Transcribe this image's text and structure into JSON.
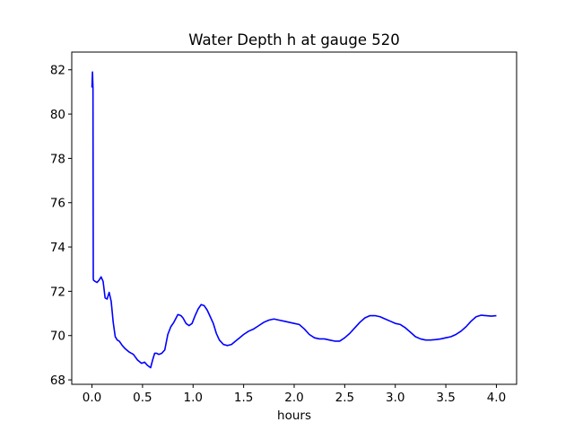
{
  "chart_data": {
    "type": "line",
    "title": "Water Depth h at gauge 520",
    "xlabel": "hours",
    "ylabel": "",
    "xlim": [
      -0.2,
      4.2
    ],
    "ylim": [
      67.8,
      82.8
    ],
    "x_ticks": [
      0.0,
      0.5,
      1.0,
      1.5,
      2.0,
      2.5,
      3.0,
      3.5,
      4.0
    ],
    "x_tick_labels": [
      "0.0",
      "0.5",
      "1.0",
      "1.5",
      "2.0",
      "2.5",
      "3.0",
      "3.5",
      "4.0"
    ],
    "y_ticks": [
      68,
      70,
      72,
      74,
      76,
      78,
      80,
      82
    ],
    "y_tick_labels": [
      "68",
      "70",
      "72",
      "74",
      "76",
      "78",
      "80",
      "82"
    ],
    "grid": false,
    "legend": null,
    "series": [
      {
        "color": "#0000ff",
        "x": [
          0.0,
          0.005,
          0.01,
          0.013,
          0.016,
          0.03,
          0.05,
          0.07,
          0.09,
          0.11,
          0.13,
          0.15,
          0.17,
          0.19,
          0.21,
          0.23,
          0.25,
          0.27,
          0.3,
          0.33,
          0.37,
          0.41,
          0.45,
          0.49,
          0.52,
          0.55,
          0.58,
          0.6,
          0.62,
          0.64,
          0.66,
          0.69,
          0.72,
          0.75,
          0.78,
          0.81,
          0.85,
          0.88,
          0.9,
          0.93,
          0.96,
          0.99,
          1.02,
          1.05,
          1.08,
          1.11,
          1.14,
          1.17,
          1.2,
          1.23,
          1.26,
          1.3,
          1.34,
          1.38,
          1.42,
          1.46,
          1.5,
          1.55,
          1.6,
          1.65,
          1.7,
          1.75,
          1.8,
          1.85,
          1.9,
          1.95,
          2.0,
          2.05,
          2.1,
          2.15,
          2.2,
          2.25,
          2.3,
          2.35,
          2.4,
          2.45,
          2.5,
          2.55,
          2.6,
          2.65,
          2.7,
          2.75,
          2.8,
          2.85,
          2.9,
          2.95,
          3.0,
          3.05,
          3.1,
          3.15,
          3.2,
          3.25,
          3.3,
          3.35,
          3.4,
          3.45,
          3.5,
          3.55,
          3.6,
          3.65,
          3.7,
          3.75,
          3.8,
          3.85,
          3.9,
          3.95,
          4.0
        ],
        "y": [
          81.2,
          81.9,
          81.2,
          72.55,
          72.5,
          72.45,
          72.4,
          72.5,
          72.65,
          72.45,
          71.7,
          71.65,
          71.95,
          71.55,
          70.6,
          69.95,
          69.8,
          69.75,
          69.55,
          69.4,
          69.25,
          69.15,
          68.9,
          68.75,
          68.8,
          68.65,
          68.55,
          68.9,
          69.2,
          69.2,
          69.15,
          69.2,
          69.35,
          70.05,
          70.4,
          70.6,
          70.95,
          70.9,
          70.8,
          70.55,
          70.45,
          70.55,
          70.9,
          71.2,
          71.4,
          71.35,
          71.15,
          70.85,
          70.55,
          70.1,
          69.8,
          69.6,
          69.55,
          69.6,
          69.75,
          69.9,
          70.05,
          70.2,
          70.3,
          70.45,
          70.6,
          70.7,
          70.75,
          70.7,
          70.65,
          70.6,
          70.55,
          70.5,
          70.3,
          70.05,
          69.9,
          69.85,
          69.85,
          69.8,
          69.75,
          69.75,
          69.9,
          70.1,
          70.35,
          70.6,
          70.8,
          70.9,
          70.9,
          70.85,
          70.75,
          70.65,
          70.55,
          70.5,
          70.35,
          70.15,
          69.95,
          69.85,
          69.8,
          69.8,
          69.82,
          69.85,
          69.9,
          69.95,
          70.05,
          70.2,
          70.4,
          70.65,
          70.85,
          70.92,
          70.9,
          70.88,
          70.9
        ]
      }
    ]
  }
}
